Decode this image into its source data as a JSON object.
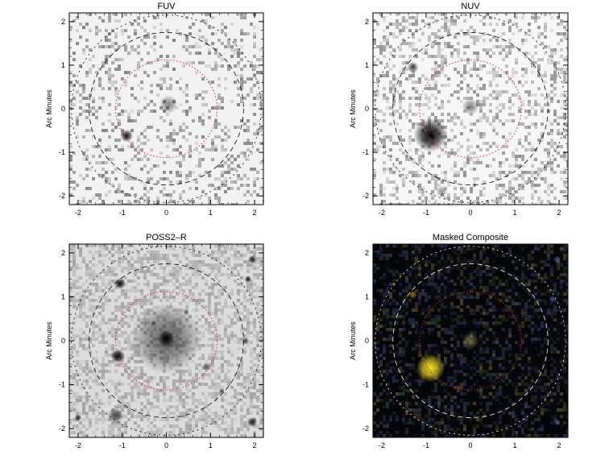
{
  "figure": {
    "panels": [
      {
        "id": "fuv",
        "title": "FUV",
        "ylabel": "Arc Minutes",
        "xticks": [
          "-2",
          "-1",
          "0",
          "1",
          "2"
        ],
        "yticks": [
          "-2",
          "-1",
          "0",
          "1",
          "2"
        ],
        "xlim": [
          -2.2,
          2.2
        ],
        "ylim": [
          -2.2,
          2.2
        ],
        "background": "#f2f2f2",
        "noise_color": "#555555",
        "noise_density": 0.22,
        "dashed_circle_color": "#000000",
        "ellipse_color": "#e8202a",
        "sources": [
          {
            "x": -0.9,
            "y": -0.62,
            "r": 0.09,
            "strength": 0.9
          },
          {
            "x": 0.05,
            "y": 0.1,
            "r": 0.13,
            "strength": 0.45
          }
        ]
      },
      {
        "id": "nuv",
        "title": "NUV",
        "ylabel": "Arc Minutes",
        "xticks": [
          "-2",
          "-1",
          "0",
          "1",
          "2"
        ],
        "yticks": [
          "-2",
          "-1",
          "0",
          "1",
          "2"
        ],
        "xlim": [
          -2.2,
          2.2
        ],
        "ylim": [
          -2.2,
          2.2
        ],
        "background": "#f7f7f7",
        "noise_color": "#666666",
        "noise_density": 0.3,
        "dashed_circle_color": "#000000",
        "ellipse_color": "#e8202a",
        "sources": [
          {
            "x": -0.9,
            "y": -0.6,
            "r": 0.24,
            "strength": 1.0
          },
          {
            "x": 0.0,
            "y": 0.05,
            "r": 0.12,
            "strength": 0.45
          },
          {
            "x": -1.3,
            "y": 0.95,
            "r": 0.08,
            "strength": 0.7
          },
          {
            "x": -0.65,
            "y": -1.9,
            "r": 0.08,
            "strength": 0.4
          }
        ]
      },
      {
        "id": "poss2r",
        "title": "POSS2–R",
        "ylabel": "Arc Minutes",
        "xticks": [
          "-2",
          "-1",
          "0",
          "1",
          "2"
        ],
        "yticks": [
          "-2",
          "-1",
          "0",
          "1",
          "2"
        ],
        "xlim": [
          -2.2,
          2.2
        ],
        "ylim": [
          -2.2,
          2.2
        ],
        "background": "#dcdcdc",
        "noise_color": "#8a8a8a",
        "noise_density": 0.5,
        "dashed_circle_color": "#000000",
        "ellipse_color": "#e8202a",
        "sources": [
          {
            "x": 0.0,
            "y": 0.05,
            "r": 0.5,
            "strength": 0.55
          },
          {
            "x": 0.0,
            "y": 0.05,
            "r": 0.12,
            "strength": 1.0
          },
          {
            "x": -1.1,
            "y": -0.35,
            "r": 0.1,
            "strength": 1.0
          },
          {
            "x": -1.05,
            "y": 1.3,
            "r": 0.08,
            "strength": 0.95
          },
          {
            "x": 1.95,
            "y": 1.85,
            "r": 0.06,
            "strength": 0.9
          },
          {
            "x": 1.85,
            "y": 1.4,
            "r": 0.05,
            "strength": 0.85
          },
          {
            "x": 1.95,
            "y": -1.85,
            "r": 0.07,
            "strength": 0.9
          },
          {
            "x": -1.15,
            "y": -1.7,
            "r": 0.11,
            "strength": 0.7
          },
          {
            "x": -2.0,
            "y": -1.75,
            "r": 0.05,
            "strength": 0.8
          },
          {
            "x": 0.9,
            "y": -0.6,
            "r": 0.06,
            "strength": 0.6
          },
          {
            "x": 1.8,
            "y": 0.0,
            "r": 0.05,
            "strength": 0.6
          },
          {
            "x": 0.45,
            "y": 0.65,
            "r": 0.04,
            "strength": 0.55
          },
          {
            "x": 1.25,
            "y": -1.15,
            "r": 0.04,
            "strength": 0.6
          },
          {
            "x": -0.3,
            "y": 0.4,
            "r": 0.04,
            "strength": 0.5
          }
        ]
      },
      {
        "id": "masked-composite",
        "title": "Masked Composite",
        "ylabel": "Arc Minutes",
        "xticks": [
          "-2",
          "-1",
          "0",
          "1",
          "2"
        ],
        "yticks": [
          "-2",
          "-1",
          "0",
          "1",
          "2"
        ],
        "xlim": [
          -2.2,
          2.2
        ],
        "ylim": [
          -2.2,
          2.2
        ],
        "background": "#05060a",
        "noise_color": "#3a3a5a",
        "noise_density": 0.35,
        "dashed_circle_color": "#ffffff",
        "ellipse_color": "#c0202a",
        "sources": [
          {
            "x": -0.9,
            "y": -0.62,
            "r": 0.2,
            "strength": 1.0,
            "color": "#f5e020"
          },
          {
            "x": 0.0,
            "y": 0.0,
            "r": 0.12,
            "strength": 0.5,
            "color": "#b8b070"
          },
          {
            "x": -1.3,
            "y": 1.05,
            "r": 0.06,
            "strength": 0.7,
            "color": "#c8a020"
          },
          {
            "x": 1.95,
            "y": 1.85,
            "r": 0.05,
            "strength": 0.6,
            "color": "#6070c0"
          },
          {
            "x": 1.95,
            "y": -1.85,
            "r": 0.05,
            "strength": 0.6,
            "color": "#6070c0"
          },
          {
            "x": 1.85,
            "y": 0.95,
            "r": 0.05,
            "strength": 0.6,
            "color": "#7080d0"
          },
          {
            "x": -1.2,
            "y": -1.7,
            "r": 0.08,
            "strength": 0.4,
            "color": "#8a7030"
          }
        ]
      }
    ]
  }
}
